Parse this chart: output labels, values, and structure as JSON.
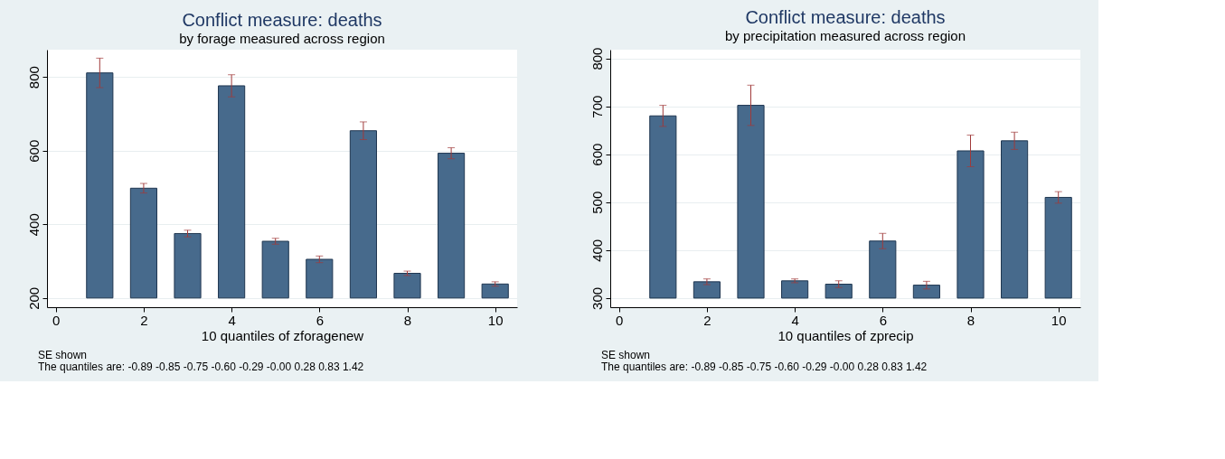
{
  "chart_data": [
    {
      "type": "bar",
      "title": "Conflict measure: deaths",
      "subtitle": "by forage measured across region",
      "xlabel": "10 quantiles of zforagenew",
      "color": "#476a8c",
      "x": [
        1,
        2,
        3,
        4,
        5,
        6,
        7,
        8,
        9,
        10
      ],
      "values": [
        611,
        298,
        175,
        576,
        154,
        105,
        454,
        67,
        393,
        38
      ],
      "base": [
        200,
        200,
        200,
        200,
        200,
        200,
        200,
        200,
        200,
        200
      ],
      "errors": [
        40,
        13,
        9,
        30,
        8,
        9,
        24,
        6,
        15,
        6
      ],
      "xlim": [
        -0.2,
        10.5
      ],
      "xticks": [
        0,
        2,
        4,
        6,
        8,
        10
      ],
      "ylim": [
        175,
        874
      ],
      "yticks": [
        200,
        400,
        600,
        800
      ],
      "grid": "y",
      "annotations": [
        "SE shown",
        "The quantiles are: -0.89 -0.85 -0.75 -0.60 -0.29 -0.00 0.28 0.83 1.42"
      ]
    },
    {
      "type": "bar",
      "title": "Conflict measure: deaths",
      "subtitle": "by precipitation measured across region",
      "xlabel": "10 quantiles of zprecip",
      "color": "#476a8c",
      "x": [
        1,
        2,
        3,
        4,
        5,
        6,
        7,
        8,
        9,
        10
      ],
      "values": [
        380,
        34,
        402,
        36,
        29,
        119,
        27,
        307,
        328,
        210
      ],
      "base": [
        300,
        300,
        300,
        300,
        300,
        300,
        300,
        300,
        300,
        300
      ],
      "errors": [
        22,
        6,
        42,
        4,
        7,
        16,
        8,
        33,
        18,
        12
      ],
      "xlim": [
        -0.2,
        10.5
      ],
      "xticks": [
        0,
        2,
        4,
        6,
        8,
        10
      ],
      "ylim": [
        281,
        818
      ],
      "yticks": [
        300,
        400,
        500,
        600,
        700,
        800
      ],
      "grid": "y",
      "annotations": [
        "SE shown",
        "The quantiles are: -0.89 -0.85 -0.75 -0.60 -0.29 -0.00 0.28 0.83 1.42"
      ]
    }
  ]
}
